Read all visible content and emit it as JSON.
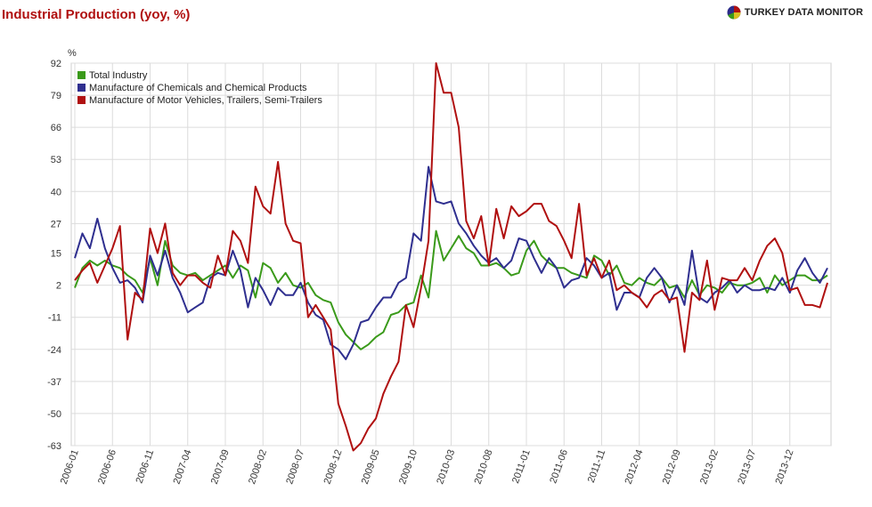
{
  "title": "Industrial Production (yoy, %)",
  "brand": {
    "name": "TURKEY DATA MONITOR",
    "icon": "pie-logo-icon"
  },
  "chart_data": {
    "type": "line",
    "title": "Industrial Production (yoy, %)",
    "ylabel": "%",
    "xlabel": "",
    "ylim": [
      -63,
      92
    ],
    "yticks": [
      92,
      79,
      66,
      53,
      40,
      27,
      15,
      2,
      -11,
      -24,
      -37,
      -50,
      -63
    ],
    "grid": true,
    "legend_position": "top-left",
    "start": "2006-01",
    "x_tick_labels": [
      "2006-01",
      "2006-06",
      "2006-11",
      "2007-04",
      "2007-09",
      "2008-02",
      "2008-07",
      "2008-12",
      "2009-05",
      "2009-10",
      "2010-03",
      "2010-08",
      "2011-01",
      "2011-06",
      "2011-11",
      "2012-04",
      "2012-09",
      "2013-02",
      "2013-07",
      "2013-12"
    ],
    "x_tick_step": 5,
    "series": [
      {
        "name": "Total Industry",
        "color": "#3a9a1a",
        "values": [
          1,
          9,
          12,
          10,
          12,
          10,
          9,
          6,
          4,
          -1,
          13,
          2,
          20,
          10,
          7,
          6,
          7,
          4,
          6,
          8,
          10,
          5,
          10,
          8,
          -3,
          11,
          9,
          3,
          7,
          2,
          1,
          3,
          -2,
          -4,
          -5,
          -13,
          -18,
          -21,
          -24,
          -22,
          -19,
          -17,
          -10,
          -9,
          -6,
          -5,
          6,
          -3,
          24,
          12,
          17,
          22,
          17,
          15,
          10,
          10,
          11,
          9,
          6,
          7,
          16,
          20,
          14,
          11,
          9,
          9,
          7,
          6,
          5,
          14,
          12,
          6,
          10,
          3,
          2,
          5,
          3,
          2,
          5,
          1,
          2,
          -3,
          4,
          -2,
          2,
          1,
          -1,
          3,
          2,
          2,
          3,
          5,
          -1,
          6,
          2,
          4,
          6,
          6,
          4,
          4,
          6
        ]
      },
      {
        "name": "Manufacture of Chemicals and Chemical Products",
        "color": "#2f2f8f",
        "values": [
          13,
          23,
          17,
          29,
          17,
          9,
          3,
          4,
          1,
          -5,
          14,
          6,
          16,
          5,
          -1,
          -9,
          -7,
          -5,
          5,
          7,
          6,
          16,
          8,
          -7,
          5,
          0,
          -6,
          1,
          -2,
          -2,
          3,
          -5,
          -10,
          -12,
          -22,
          -24,
          -28,
          -22,
          -13,
          -12,
          -7,
          -3,
          -3,
          3,
          5,
          23,
          20,
          50,
          36,
          35,
          36,
          27,
          23,
          18,
          14,
          11,
          13,
          9,
          12,
          21,
          20,
          13,
          7,
          13,
          9,
          1,
          4,
          5,
          13,
          10,
          5,
          7,
          -8,
          -1,
          -1,
          -3,
          5,
          9,
          5,
          -5,
          2,
          -6,
          16,
          -3,
          -5,
          -1,
          1,
          4,
          -1,
          2,
          0,
          0,
          1,
          0,
          5,
          -1,
          8,
          13,
          7,
          3,
          9
        ]
      },
      {
        "name": "Manufacture of Motor Vehicles, Trailers, Semi-Trailers",
        "color": "#b01010",
        "values": [
          4,
          8,
          11,
          3,
          10,
          17,
          26,
          -20,
          -1,
          -4,
          25,
          15,
          27,
          7,
          2,
          6,
          6,
          3,
          1,
          14,
          6,
          24,
          20,
          11,
          42,
          34,
          31,
          52,
          27,
          20,
          19,
          -11,
          -6,
          -11,
          -16,
          -46,
          -55,
          -65,
          -62,
          -56,
          -52,
          -42,
          -35,
          -29,
          -6,
          -15,
          1,
          20,
          92,
          80,
          80,
          66,
          28,
          21,
          30,
          10,
          33,
          21,
          34,
          30,
          32,
          35,
          35,
          28,
          26,
          20,
          13,
          35,
          6,
          13,
          5,
          12,
          0,
          2,
          -1,
          -3,
          -7,
          -2,
          0,
          -4,
          -3,
          -25,
          -1,
          -4,
          12,
          -8,
          5,
          4,
          4,
          9,
          4,
          12,
          18,
          21,
          15,
          0,
          1,
          -6,
          -6,
          -7,
          3
        ]
      }
    ]
  }
}
